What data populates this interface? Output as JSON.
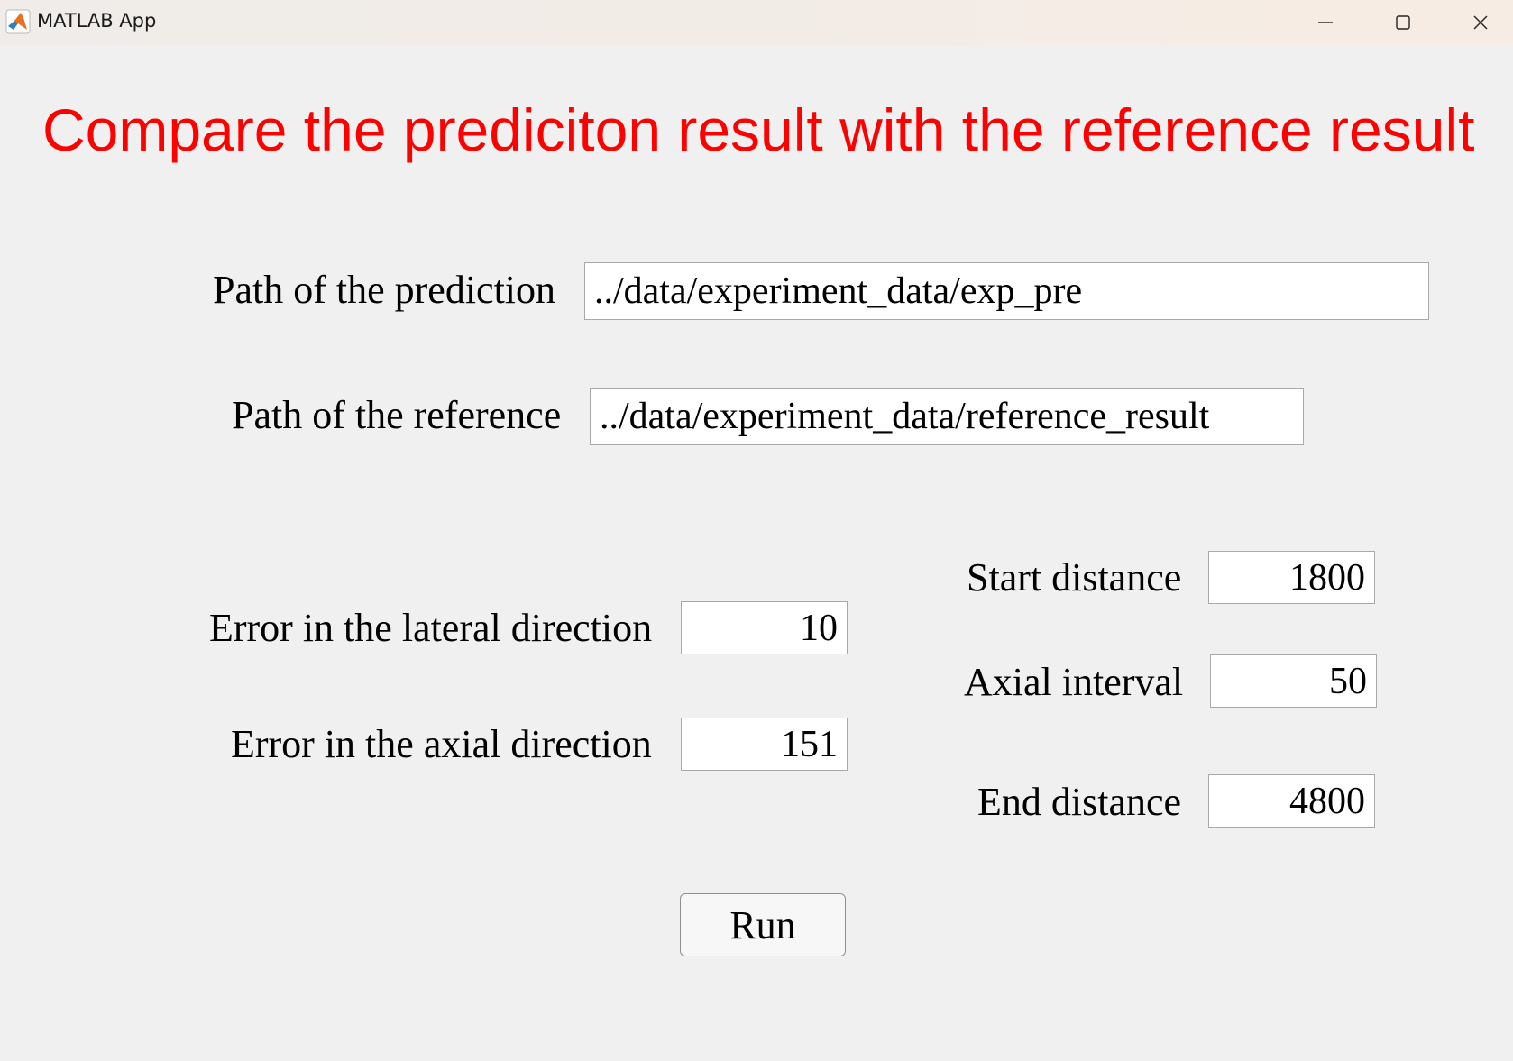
{
  "window": {
    "title": "MATLAB App",
    "icon": "matlab-logo-icon",
    "controls": [
      "minimize-icon",
      "maximize-icon",
      "close-icon"
    ]
  },
  "heading": "Compare the prediciton result with the reference result",
  "colors": {
    "heading": "#ff0000",
    "background": "#f0f0f0",
    "field_background": "#ffffff"
  },
  "paths": {
    "prediction_label": "Path of the prediction",
    "prediction_value": "../data/experiment_data/exp_pre",
    "reference_label": "Path of the reference",
    "reference_value": "../data/experiment_data/reference_result"
  },
  "errors": {
    "lateral_label": "Error in the lateral direction",
    "lateral_value": "10",
    "axial_label": "Error in the axial direction",
    "axial_value": "151"
  },
  "distances": {
    "start_label": "Start distance",
    "start_value": "1800",
    "interval_label": "Axial interval",
    "interval_value": "50",
    "end_label": "End distance",
    "end_value": "4800"
  },
  "run_label": "Run"
}
